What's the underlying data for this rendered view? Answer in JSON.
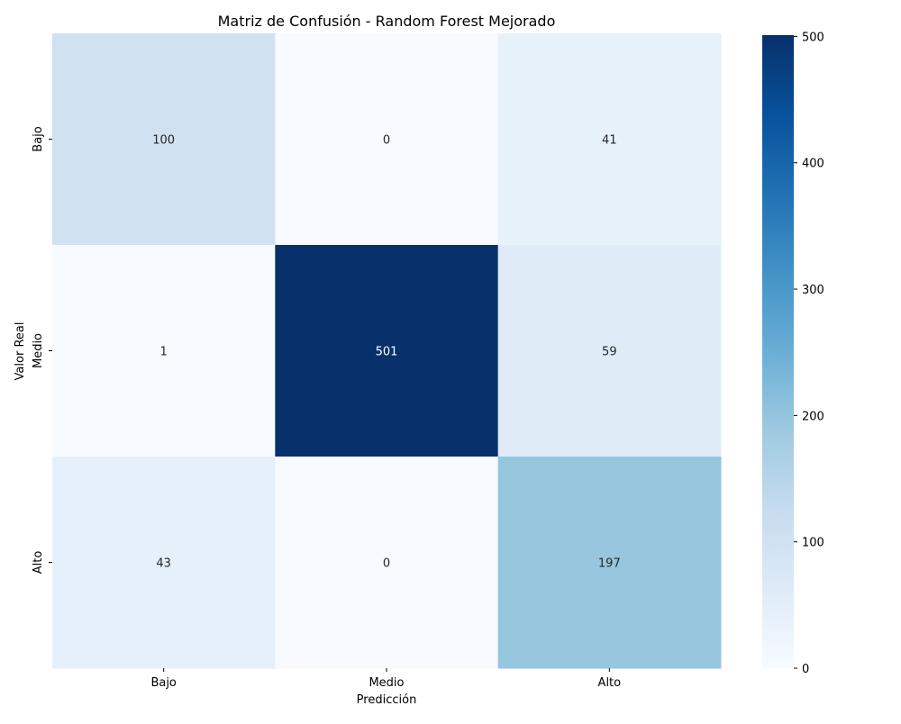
{
  "chart_data": {
    "type": "heatmap",
    "title": "Matriz de Confusión - Random Forest Mejorado",
    "xlabel": "Predicción",
    "ylabel": "Valor Real",
    "x_categories": [
      "Bajo",
      "Medio",
      "Alto"
    ],
    "y_categories": [
      "Bajo",
      "Medio",
      "Alto"
    ],
    "values": [
      [
        100,
        0,
        41
      ],
      [
        1,
        501,
        59
      ],
      [
        43,
        0,
        197
      ]
    ],
    "colormap": "Blues",
    "colorbar": {
      "range": [
        0,
        501
      ],
      "ticks": [
        0,
        100,
        200,
        300,
        400,
        500
      ]
    },
    "grid": false,
    "colors": {
      "low": "#f7fbff",
      "high": "#08306b",
      "text_light": "#ffffff",
      "text_dark": "#262626"
    }
  }
}
